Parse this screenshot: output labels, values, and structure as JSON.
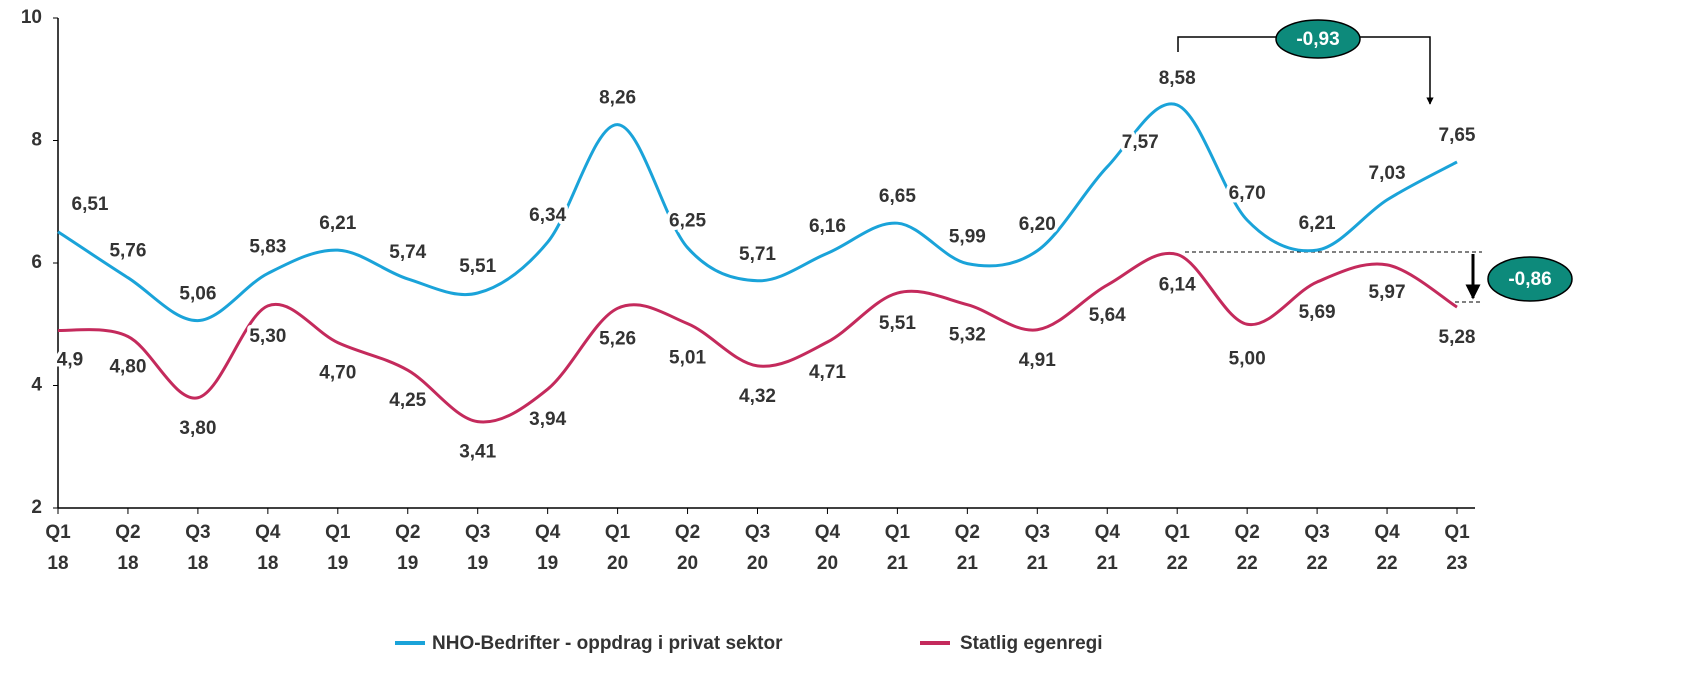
{
  "chart_data": {
    "type": "line",
    "categories": [
      [
        "Q1",
        "18"
      ],
      [
        "Q2",
        "18"
      ],
      [
        "Q3",
        "18"
      ],
      [
        "Q4",
        "18"
      ],
      [
        "Q1",
        "19"
      ],
      [
        "Q2",
        "19"
      ],
      [
        "Q3",
        "19"
      ],
      [
        "Q4",
        "19"
      ],
      [
        "Q1",
        "20"
      ],
      [
        "Q2",
        "20"
      ],
      [
        "Q3",
        "20"
      ],
      [
        "Q4",
        "20"
      ],
      [
        "Q1",
        "21"
      ],
      [
        "Q2",
        "21"
      ],
      [
        "Q3",
        "21"
      ],
      [
        "Q4",
        "21"
      ],
      [
        "Q1",
        "22"
      ],
      [
        "Q2",
        "22"
      ],
      [
        "Q3",
        "22"
      ],
      [
        "Q4",
        "22"
      ],
      [
        "Q1",
        "23"
      ]
    ],
    "series": [
      {
        "name": "NHO-Bedrifter - oppdrag i privat sektor",
        "color": "#1aa3d9",
        "values": [
          6.51,
          5.76,
          5.06,
          5.83,
          6.21,
          5.74,
          5.51,
          6.34,
          8.26,
          6.25,
          5.71,
          6.16,
          6.65,
          5.99,
          6.2,
          7.57,
          8.58,
          6.7,
          6.21,
          7.03,
          7.65
        ],
        "value_labels": [
          "6,51",
          "5,76",
          "5,06",
          "5,83",
          "6,21",
          "5,74",
          "5,51",
          "6,34",
          "8,26",
          "6,25",
          "5,71",
          "6,16",
          "6,65",
          "5,99",
          "6,20",
          "7,57",
          "8,58",
          "6,70",
          "6,21",
          "7,03",
          "7,65"
        ]
      },
      {
        "name": "Statlig egenregi",
        "color": "#c42a5c",
        "values": [
          4.9,
          4.8,
          3.8,
          5.3,
          4.7,
          4.25,
          3.41,
          3.94,
          5.26,
          5.01,
          4.32,
          4.71,
          5.51,
          5.32,
          4.91,
          5.64,
          6.14,
          5.0,
          5.69,
          5.97,
          5.28
        ],
        "value_labels": [
          "4,9",
          "4,80",
          "3,80",
          "5,30",
          "4,70",
          "4,25",
          "3,41",
          "3,94",
          "5,26",
          "5,01",
          "4,32",
          "4,71",
          "5,51",
          "5,32",
          "4,91",
          "5,64",
          "6,14",
          "5,00",
          "5,69",
          "5,97",
          "5,28"
        ]
      }
    ],
    "ylim": [
      2,
      10
    ],
    "yticks": [
      2,
      4,
      6,
      8,
      10
    ],
    "grid": false,
    "legend": "bottom",
    "annotations": [
      {
        "text": "-0,93",
        "color": "#0d8a7b"
      },
      {
        "text": "-0,86",
        "color": "#0d8a7b"
      }
    ]
  }
}
